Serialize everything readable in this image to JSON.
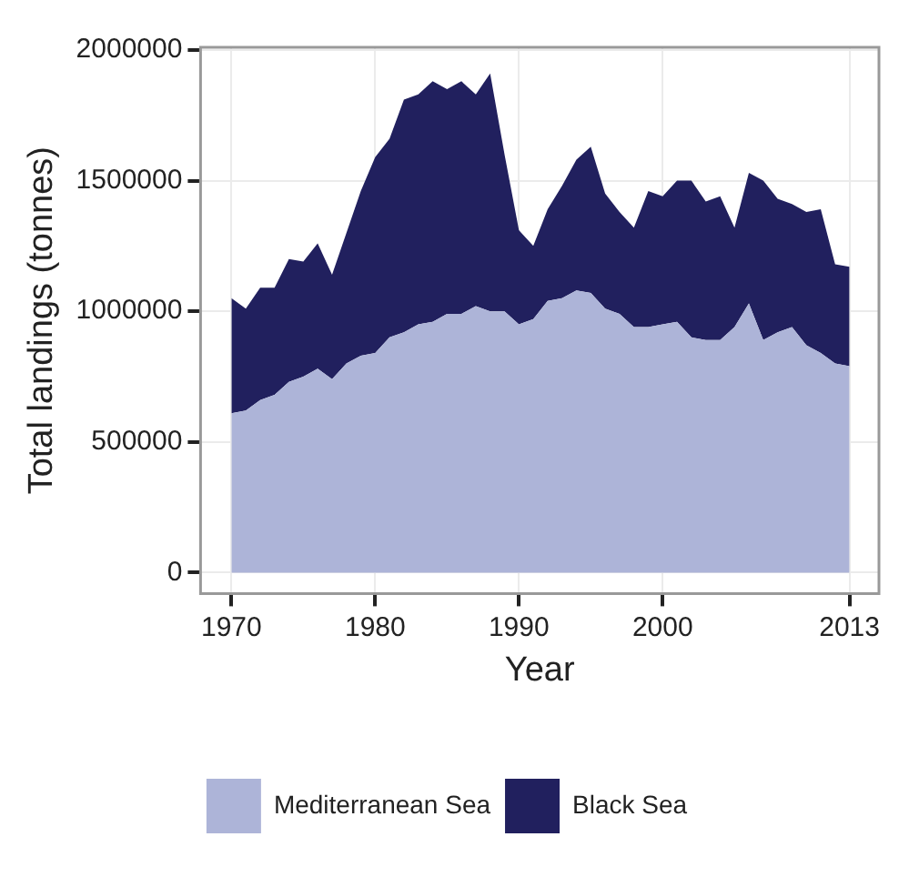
{
  "chart_data": {
    "type": "area",
    "stacked": true,
    "xlabel": "Year",
    "ylabel": "Total landings (tonnes)",
    "x": [
      1970,
      1971,
      1972,
      1973,
      1974,
      1975,
      1976,
      1977,
      1978,
      1979,
      1980,
      1981,
      1982,
      1983,
      1984,
      1985,
      1986,
      1987,
      1988,
      1989,
      1990,
      1991,
      1992,
      1993,
      1994,
      1995,
      1996,
      1997,
      1998,
      1999,
      2000,
      2001,
      2002,
      2003,
      2004,
      2005,
      2006,
      2007,
      2008,
      2009,
      2010,
      2011,
      2012,
      2013
    ],
    "series": [
      {
        "name": "Mediterranean Sea",
        "color": "#adb4d8",
        "values": [
          610000,
          620000,
          660000,
          680000,
          730000,
          750000,
          780000,
          740000,
          800000,
          830000,
          840000,
          900000,
          920000,
          950000,
          960000,
          990000,
          990000,
          1020000,
          1000000,
          1000000,
          950000,
          970000,
          1040000,
          1050000,
          1080000,
          1070000,
          1010000,
          990000,
          940000,
          940000,
          950000,
          960000,
          900000,
          890000,
          890000,
          940000,
          1030000,
          890000,
          920000,
          940000,
          870000,
          840000,
          800000,
          790000
        ]
      },
      {
        "name": "Black Sea",
        "color": "#21205e",
        "values": [
          440000,
          390000,
          430000,
          410000,
          470000,
          440000,
          480000,
          400000,
          500000,
          630000,
          750000,
          760000,
          890000,
          880000,
          920000,
          860000,
          890000,
          810000,
          910000,
          600000,
          360000,
          280000,
          350000,
          430000,
          500000,
          560000,
          440000,
          390000,
          380000,
          520000,
          490000,
          540000,
          600000,
          530000,
          550000,
          380000,
          500000,
          610000,
          510000,
          470000,
          510000,
          550000,
          380000,
          380000
        ]
      }
    ],
    "xlim": [
      1967.85,
      2015.05
    ],
    "ylim": [
      -80000,
      2010000
    ],
    "xticks": [
      1970,
      1980,
      1990,
      2000,
      2013
    ],
    "yticks": [
      0,
      500000,
      1000000,
      1500000,
      2000000
    ],
    "grid": true,
    "legend": "bottom"
  }
}
